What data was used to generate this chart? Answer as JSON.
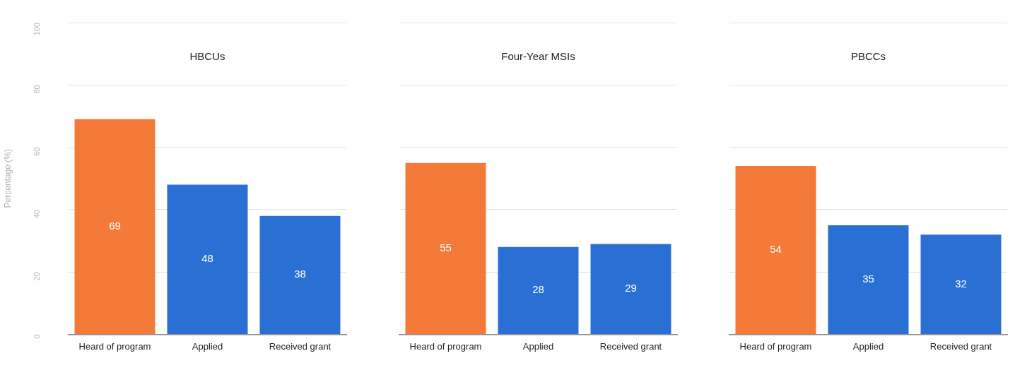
{
  "chart_data": [
    {
      "type": "bar",
      "title": "HBCUs",
      "ylabel": "Percentage (%)",
      "categories": [
        "Heard of program",
        "Applied",
        "Received grant"
      ],
      "values": [
        69,
        48,
        38
      ],
      "colors": [
        "#f47a3a",
        "#2a6fd3",
        "#2a6fd3"
      ],
      "ylim": [
        0,
        100
      ],
      "yticks": [
        0,
        20,
        40,
        60,
        80,
        100
      ],
      "grid": "y",
      "data_labels": true
    },
    {
      "type": "bar",
      "title": "Four-Year MSIs",
      "categories": [
        "Heard of program",
        "Applied",
        "Received grant"
      ],
      "values": [
        55,
        28,
        29
      ],
      "colors": [
        "#f47a3a",
        "#2a6fd3",
        "#2a6fd3"
      ],
      "ylim": [
        0,
        100
      ],
      "yticks": [
        0,
        20,
        40,
        60,
        80,
        100
      ],
      "grid": "y",
      "data_labels": true,
      "tick_labels": "x"
    },
    {
      "type": "bar",
      "title": "PBCCs",
      "categories": [
        "Heard of program",
        "Applied",
        "Received grant"
      ],
      "values": [
        54,
        35,
        32
      ],
      "colors": [
        "#f47a3a",
        "#2a6fd3",
        "#2a6fd3"
      ],
      "ylim": [
        0,
        100
      ],
      "yticks": [
        0,
        20,
        40,
        60,
        80,
        100
      ],
      "grid": "y",
      "data_labels": true,
      "tick_labels": "x"
    }
  ]
}
